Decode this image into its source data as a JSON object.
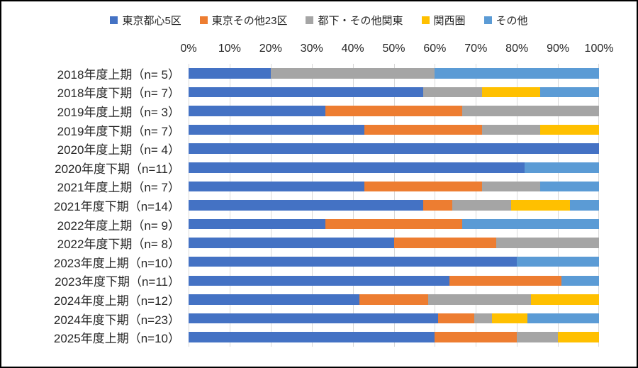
{
  "chart_data": {
    "type": "bar",
    "orientation": "horizontal",
    "stacked": true,
    "title": "",
    "xlabel": "",
    "ylabel": "",
    "x_axis": {
      "min": 0,
      "max": 100,
      "tick_step": 10,
      "position": "top",
      "tick_labels": [
        "0%",
        "10%",
        "20%",
        "30%",
        "40%",
        "50%",
        "60%",
        "70%",
        "80%",
        "90%",
        "100%"
      ]
    },
    "grid": "vertical-on",
    "legend_position": "top-center",
    "gridline_color": "#D9D9D9",
    "text_color": "#262626",
    "series": [
      {
        "name": "東京都心5区",
        "color": "#4472C4"
      },
      {
        "name": "東京その他23区",
        "color": "#ED7D31"
      },
      {
        "name": "都下・その他関東",
        "color": "#A5A5A5"
      },
      {
        "name": "関西圏",
        "color": "#FFC000"
      },
      {
        "name": "その他",
        "color": "#5B9BD5"
      }
    ],
    "rows": [
      {
        "label": "2018年度上期（n= 5）",
        "n": 5,
        "counts": [
          1,
          0,
          2,
          0,
          2
        ],
        "percent": [
          20.0,
          0,
          40.0,
          0,
          40.0
        ]
      },
      {
        "label": "2018年度下期（n= 7）",
        "n": 7,
        "counts": [
          4,
          0,
          1,
          1,
          1
        ],
        "percent": [
          57.1,
          0,
          14.3,
          14.3,
          14.3
        ]
      },
      {
        "label": "2019年度上期（n= 3）",
        "n": 3,
        "counts": [
          1,
          1,
          1,
          0,
          0
        ],
        "percent": [
          33.3,
          33.3,
          33.3,
          0,
          0
        ]
      },
      {
        "label": "2019年度下期（n= 7）",
        "n": 7,
        "counts": [
          3,
          2,
          1,
          1,
          0
        ],
        "percent": [
          42.9,
          28.6,
          14.3,
          14.3,
          0
        ]
      },
      {
        "label": "2020年度上期（n= 4）",
        "n": 4,
        "counts": [
          4,
          0,
          0,
          0,
          0
        ],
        "percent": [
          100.0,
          0,
          0,
          0,
          0
        ]
      },
      {
        "label": "2020年度下期（n=11）",
        "n": 11,
        "counts": [
          9,
          0,
          0,
          0,
          2
        ],
        "percent": [
          81.8,
          0,
          0,
          0,
          18.2
        ]
      },
      {
        "label": "2021年度上期（n= 7）",
        "n": 7,
        "counts": [
          3,
          2,
          1,
          0,
          1
        ],
        "percent": [
          42.9,
          28.6,
          14.3,
          0,
          14.3
        ]
      },
      {
        "label": "2021年度下期（n=14）",
        "n": 14,
        "counts": [
          8,
          1,
          2,
          2,
          1
        ],
        "percent": [
          57.1,
          7.1,
          14.3,
          14.3,
          7.1
        ]
      },
      {
        "label": "2022年度上期（n= 9）",
        "n": 9,
        "counts": [
          3,
          3,
          0,
          0,
          3
        ],
        "percent": [
          33.3,
          33.3,
          0,
          0,
          33.3
        ]
      },
      {
        "label": "2022年度下期（n= 8）",
        "n": 8,
        "counts": [
          4,
          2,
          2,
          0,
          0
        ],
        "percent": [
          50.0,
          25.0,
          25.0,
          0,
          0
        ]
      },
      {
        "label": "2023年度上期（n=10）",
        "n": 10,
        "counts": [
          8,
          0,
          0,
          0,
          2
        ],
        "percent": [
          80.0,
          0,
          0,
          0,
          20.0
        ]
      },
      {
        "label": "2023年度下期（n=11）",
        "n": 11,
        "counts": [
          7,
          3,
          0,
          0,
          1
        ],
        "percent": [
          63.6,
          27.3,
          0,
          0,
          9.1
        ]
      },
      {
        "label": "2024年度上期（n=12）",
        "n": 12,
        "counts": [
          5,
          2,
          3,
          2,
          0
        ],
        "percent": [
          41.7,
          16.7,
          25.0,
          16.7,
          0
        ]
      },
      {
        "label": "2024年度下期（n=23）",
        "n": 23,
        "counts": [
          14,
          2,
          1,
          2,
          4
        ],
        "percent": [
          60.9,
          8.7,
          4.3,
          8.7,
          17.4
        ]
      },
      {
        "label": "2025年度上期（n=10）",
        "n": 10,
        "counts": [
          6,
          2,
          1,
          1,
          0
        ],
        "percent": [
          60.0,
          20.0,
          10.0,
          10.0,
          0
        ]
      }
    ]
  }
}
